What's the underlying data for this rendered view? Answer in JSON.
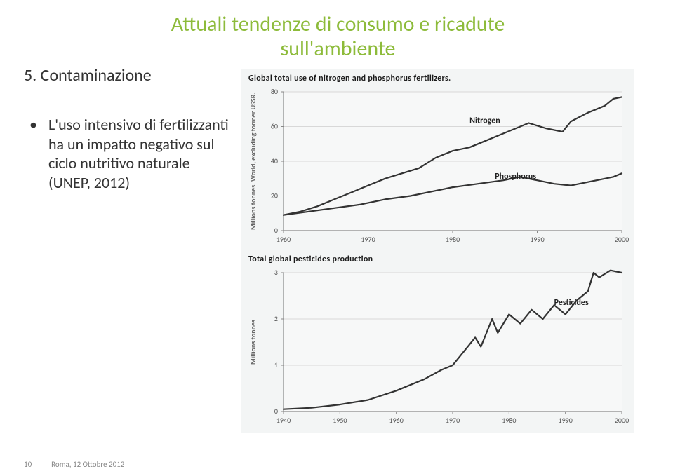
{
  "title": {
    "line1": "Attuali tendenze di consumo e ricadute",
    "line2": "sull'ambiente",
    "color": "#8dbb3a",
    "fontsize": 30
  },
  "numbered_item": "5. Contaminazione",
  "bullet": "L'uso intensivo di fertilizzanti ha un impatto negativo sul ciclo nutritivo naturale (UNEP, 2012)",
  "footer": {
    "page": "10",
    "text": "Roma, 12 Ottobre 2012"
  },
  "chart1": {
    "type": "line",
    "title": "Global total use of nitrogen and phosphorus fertilizers.",
    "ylabel": "Millions tonnes. World, excluding former USSR.",
    "background_color": "#f3f5f5",
    "grid_color": "#d8d8d8",
    "axis_color": "#888888",
    "line_color": "#333333",
    "line_width": 2.2,
    "label_fontsize": 10,
    "title_fontsize": 12,
    "x": {
      "min": 1960,
      "max": 2000,
      "ticks": [
        1960,
        1970,
        1980,
        1990,
        2000
      ]
    },
    "y": {
      "min": 0,
      "max": 80,
      "ticks": [
        0,
        20,
        40,
        60,
        80
      ]
    },
    "series": [
      {
        "name": "Nitrogen",
        "label_pos": {
          "x": 1982,
          "y": 62
        },
        "points": [
          {
            "x": 1960,
            "y": 9
          },
          {
            "x": 1962,
            "y": 11
          },
          {
            "x": 1964,
            "y": 14
          },
          {
            "x": 1966,
            "y": 18
          },
          {
            "x": 1968,
            "y": 22
          },
          {
            "x": 1970,
            "y": 26
          },
          {
            "x": 1972,
            "y": 30
          },
          {
            "x": 1974,
            "y": 33
          },
          {
            "x": 1976,
            "y": 36
          },
          {
            "x": 1978,
            "y": 42
          },
          {
            "x": 1980,
            "y": 46
          },
          {
            "x": 1982,
            "y": 48
          },
          {
            "x": 1984,
            "y": 52
          },
          {
            "x": 1986,
            "y": 56
          },
          {
            "x": 1988,
            "y": 60
          },
          {
            "x": 1989,
            "y": 62
          },
          {
            "x": 1991,
            "y": 59
          },
          {
            "x": 1993,
            "y": 57
          },
          {
            "x": 1994,
            "y": 63
          },
          {
            "x": 1996,
            "y": 68
          },
          {
            "x": 1997,
            "y": 70
          },
          {
            "x": 1998,
            "y": 72
          },
          {
            "x": 1999,
            "y": 76
          },
          {
            "x": 2000,
            "y": 77
          }
        ]
      },
      {
        "name": "Phosphorus",
        "label_pos": {
          "x": 1985,
          "y": 30
        },
        "points": [
          {
            "x": 1960,
            "y": 9
          },
          {
            "x": 1963,
            "y": 11
          },
          {
            "x": 1966,
            "y": 13
          },
          {
            "x": 1969,
            "y": 15
          },
          {
            "x": 1972,
            "y": 18
          },
          {
            "x": 1975,
            "y": 20
          },
          {
            "x": 1978,
            "y": 23
          },
          {
            "x": 1980,
            "y": 25
          },
          {
            "x": 1983,
            "y": 27
          },
          {
            "x": 1986,
            "y": 29
          },
          {
            "x": 1988,
            "y": 31
          },
          {
            "x": 1990,
            "y": 29
          },
          {
            "x": 1992,
            "y": 27
          },
          {
            "x": 1994,
            "y": 26
          },
          {
            "x": 1996,
            "y": 28
          },
          {
            "x": 1998,
            "y": 30
          },
          {
            "x": 1999,
            "y": 31
          },
          {
            "x": 2000,
            "y": 33
          }
        ]
      }
    ]
  },
  "chart2": {
    "type": "line",
    "title": "Total global pesticides production",
    "ylabel": "Millions tonnes",
    "background_color": "#f3f5f5",
    "grid_color": "#d8d8d8",
    "axis_color": "#888888",
    "line_color": "#333333",
    "line_width": 2.2,
    "label_fontsize": 10,
    "title_fontsize": 12,
    "x": {
      "min": 1940,
      "max": 2000,
      "ticks": [
        1940,
        1950,
        1960,
        1970,
        1980,
        1990,
        2000
      ]
    },
    "y": {
      "min": 0,
      "max": 3.0,
      "ticks": [
        0,
        1.0,
        2.0,
        3.0
      ]
    },
    "series": [
      {
        "name": "Pesticides",
        "label_pos": {
          "x": 1988,
          "y": 2.3
        },
        "points": [
          {
            "x": 1940,
            "y": 0.05
          },
          {
            "x": 1945,
            "y": 0.08
          },
          {
            "x": 1950,
            "y": 0.15
          },
          {
            "x": 1955,
            "y": 0.25
          },
          {
            "x": 1960,
            "y": 0.45
          },
          {
            "x": 1965,
            "y": 0.7
          },
          {
            "x": 1968,
            "y": 0.9
          },
          {
            "x": 1970,
            "y": 1.0
          },
          {
            "x": 1972,
            "y": 1.3
          },
          {
            "x": 1974,
            "y": 1.6
          },
          {
            "x": 1975,
            "y": 1.4
          },
          {
            "x": 1977,
            "y": 2.0
          },
          {
            "x": 1978,
            "y": 1.7
          },
          {
            "x": 1980,
            "y": 2.1
          },
          {
            "x": 1982,
            "y": 1.9
          },
          {
            "x": 1984,
            "y": 2.2
          },
          {
            "x": 1986,
            "y": 2.0
          },
          {
            "x": 1988,
            "y": 2.3
          },
          {
            "x": 1990,
            "y": 2.1
          },
          {
            "x": 1992,
            "y": 2.4
          },
          {
            "x": 1994,
            "y": 2.6
          },
          {
            "x": 1995,
            "y": 3.0
          },
          {
            "x": 1996,
            "y": 2.9
          },
          {
            "x": 1998,
            "y": 3.05
          },
          {
            "x": 2000,
            "y": 3.0
          }
        ]
      }
    ]
  }
}
